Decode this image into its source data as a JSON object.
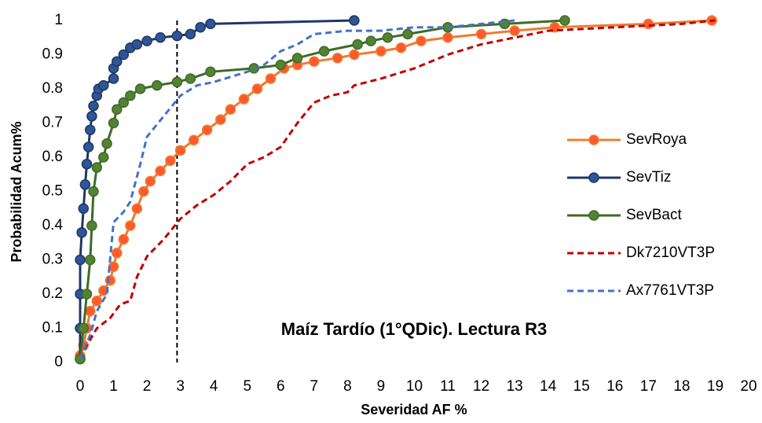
{
  "chart_data": {
    "type": "line",
    "annotation": "Maíz Tardío (1°QDic). Lectura R3",
    "x_label": "Severidad AF %",
    "y_label": "Probabilidad Acum%",
    "vline_x": 2.9,
    "xlim": [
      0,
      20
    ],
    "xticks": [
      0,
      1,
      2,
      3,
      4,
      5,
      6,
      7,
      8,
      9,
      10,
      11,
      12,
      13,
      14,
      15,
      16,
      17,
      18,
      19,
      20
    ],
    "ylim": [
      0,
      1
    ],
    "yticks": [
      0,
      0.1,
      0.2,
      0.3,
      0.4,
      0.5,
      0.6,
      0.7,
      0.8,
      0.9,
      1
    ],
    "series": [
      {
        "name": "SevRoya",
        "color": "#ed7d31",
        "marker_fill": "#ff5a2b",
        "markers": true,
        "dash": false,
        "x": [
          0,
          0.1,
          0.2,
          0.3,
          0.5,
          0.7,
          0.9,
          1,
          1.1,
          1.3,
          1.5,
          1.7,
          1.9,
          2.1,
          2.4,
          2.7,
          3,
          3.4,
          3.8,
          4.2,
          4.5,
          4.9,
          5.3,
          5.7,
          6.1,
          6.5,
          7,
          7.7,
          8.2,
          9,
          9.6,
          10.2,
          11,
          12,
          13,
          14.2,
          17,
          18.9
        ],
        "values": [
          0.02,
          0.05,
          0.1,
          0.15,
          0.18,
          0.21,
          0.24,
          0.28,
          0.32,
          0.36,
          0.4,
          0.45,
          0.5,
          0.53,
          0.56,
          0.59,
          0.62,
          0.65,
          0.68,
          0.71,
          0.74,
          0.77,
          0.8,
          0.83,
          0.86,
          0.87,
          0.88,
          0.89,
          0.9,
          0.91,
          0.92,
          0.94,
          0.95,
          0.96,
          0.97,
          0.98,
          0.99,
          1
        ]
      },
      {
        "name": "SevTiz",
        "color": "#1f3864",
        "marker_fill": "#2f5597",
        "markers": true,
        "dash": false,
        "x": [
          0,
          0,
          0,
          0,
          0.05,
          0.1,
          0.15,
          0.2,
          0.25,
          0.3,
          0.35,
          0.4,
          0.5,
          0.55,
          0.7,
          1,
          1,
          1.1,
          1.3,
          1.5,
          1.7,
          2,
          2.4,
          2.9,
          3.3,
          3.6,
          3.9,
          8.2
        ],
        "values": [
          0.01,
          0.1,
          0.2,
          0.3,
          0.38,
          0.45,
          0.52,
          0.58,
          0.63,
          0.68,
          0.72,
          0.75,
          0.78,
          0.8,
          0.81,
          0.83,
          0.86,
          0.88,
          0.9,
          0.92,
          0.93,
          0.94,
          0.95,
          0.955,
          0.96,
          0.98,
          0.99,
          1
        ]
      },
      {
        "name": "SevBact",
        "color": "#3e6b27",
        "marker_fill": "#548235",
        "markers": true,
        "dash": false,
        "x": [
          0,
          0.1,
          0.2,
          0.3,
          0.35,
          0.4,
          0.5,
          0.7,
          0.8,
          1,
          1.1,
          1.3,
          1.5,
          1.8,
          2.3,
          2.9,
          3.3,
          3.9,
          5.2,
          6,
          6.5,
          7.3,
          8.3,
          8.7,
          9.2,
          9.8,
          11,
          12.7,
          14.5
        ],
        "values": [
          0.01,
          0.1,
          0.2,
          0.3,
          0.4,
          0.5,
          0.57,
          0.6,
          0.64,
          0.7,
          0.74,
          0.76,
          0.78,
          0.8,
          0.81,
          0.82,
          0.83,
          0.85,
          0.86,
          0.87,
          0.89,
          0.91,
          0.93,
          0.94,
          0.95,
          0.96,
          0.98,
          0.99,
          1
        ]
      },
      {
        "name": "Dk7210VT3P",
        "color": "#c00000",
        "markers": false,
        "dash": true,
        "x": [
          0,
          0.2,
          0.5,
          0.9,
          1.2,
          1.5,
          1.7,
          2,
          2.5,
          3,
          3.5,
          4,
          4.5,
          5,
          5.5,
          6,
          6.5,
          7,
          7.5,
          8,
          8.2,
          9,
          10,
          10.5,
          11,
          12,
          13,
          14,
          16,
          18,
          19
        ],
        "values": [
          0.01,
          0.05,
          0.1,
          0.13,
          0.17,
          0.18,
          0.25,
          0.31,
          0.36,
          0.42,
          0.46,
          0.49,
          0.53,
          0.58,
          0.6,
          0.63,
          0.7,
          0.76,
          0.78,
          0.79,
          0.81,
          0.83,
          0.86,
          0.88,
          0.9,
          0.93,
          0.95,
          0.97,
          0.98,
          0.99,
          1
        ]
      },
      {
        "name": "Ax7761VT3P",
        "color": "#4472c4",
        "markers": false,
        "dash": true,
        "x": [
          0,
          0.3,
          0.5,
          0.8,
          1,
          1.3,
          1.5,
          1.8,
          2,
          2.5,
          3,
          3.5,
          4,
          5,
          5.5,
          6,
          6.5,
          7,
          8,
          9,
          10,
          11,
          12,
          13
        ],
        "values": [
          0.01,
          0.08,
          0.15,
          0.2,
          0.41,
          0.44,
          0.47,
          0.58,
          0.66,
          0.72,
          0.78,
          0.81,
          0.82,
          0.85,
          0.87,
          0.91,
          0.93,
          0.96,
          0.97,
          0.97,
          0.98,
          0.98,
          0.99,
          1
        ]
      }
    ]
  }
}
